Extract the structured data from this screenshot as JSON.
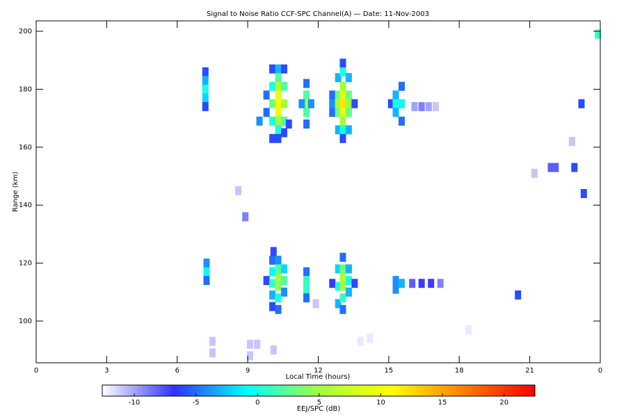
{
  "chart_data": {
    "type": "heatmap",
    "title": "Signal to Noise Ratio CCF-SPC Channel(A) — Date: 11-Nov-2003",
    "x_label": "Local Time (hours)",
    "y_label": "Range (km)",
    "xlim": [
      0,
      24
    ],
    "xticks": [
      0,
      3,
      6,
      9,
      12,
      15,
      18,
      21,
      {
        "value": 24,
        "label": "0"
      }
    ],
    "ylim": [
      85.6,
      203.6
    ],
    "yticks": [
      100,
      120,
      140,
      160,
      180,
      200
    ],
    "colorbar_label": "EEJ/SPC (dB)",
    "clim": [
      -12.6,
      22.5
    ],
    "cticks": [
      -10,
      -5,
      0,
      5,
      10,
      15,
      20
    ],
    "colormap": [
      "#ffffff",
      "#3030ff",
      "#00ffff",
      "#a0ff40",
      "#ffff00",
      "#ff8000",
      "#ff0000"
    ],
    "cells": [
      [
        7.2,
        186,
        -6
      ],
      [
        7.2,
        183,
        -3
      ],
      [
        7.2,
        180,
        0
      ],
      [
        7.2,
        177,
        -2
      ],
      [
        7.2,
        174,
        -6
      ],
      [
        9.8,
        178,
        -5
      ],
      [
        9.8,
        172,
        -5
      ],
      [
        10.05,
        187,
        -6
      ],
      [
        10.05,
        181,
        0
      ],
      [
        10.05,
        175,
        3
      ],
      [
        10.05,
        169,
        0
      ],
      [
        10.05,
        163,
        -6
      ],
      [
        10.3,
        187,
        -3
      ],
      [
        10.3,
        184,
        2
      ],
      [
        10.3,
        181,
        6
      ],
      [
        10.3,
        178,
        9
      ],
      [
        10.3,
        175,
        11
      ],
      [
        10.3,
        172,
        9
      ],
      [
        10.3,
        169,
        5
      ],
      [
        10.3,
        166,
        0
      ],
      [
        10.3,
        163,
        -6
      ],
      [
        10.55,
        187,
        -6
      ],
      [
        10.55,
        181,
        2
      ],
      [
        10.55,
        175,
        5
      ],
      [
        10.55,
        169,
        2
      ],
      [
        10.55,
        165,
        -6
      ],
      [
        11.5,
        182,
        -5
      ],
      [
        11.5,
        178,
        2
      ],
      [
        11.5,
        175,
        5
      ],
      [
        11.5,
        172,
        2
      ],
      [
        11.5,
        168,
        -5
      ],
      [
        11.3,
        175,
        -4
      ],
      [
        11.7,
        175,
        -4
      ],
      [
        12.6,
        178,
        -5
      ],
      [
        12.6,
        175,
        -4
      ],
      [
        12.6,
        172,
        -5
      ],
      [
        12.85,
        184,
        -3
      ],
      [
        12.85,
        178,
        3
      ],
      [
        12.85,
        175,
        5
      ],
      [
        12.85,
        172,
        3
      ],
      [
        12.85,
        166,
        -3
      ],
      [
        13.05,
        189,
        -6
      ],
      [
        13.05,
        186,
        0
      ],
      [
        13.05,
        181,
        5
      ],
      [
        13.05,
        178,
        9
      ],
      [
        13.05,
        175,
        12
      ],
      [
        13.05,
        172,
        9
      ],
      [
        13.05,
        169,
        5
      ],
      [
        13.05,
        166,
        0
      ],
      [
        13.05,
        163,
        -6
      ],
      [
        13.3,
        184,
        -3
      ],
      [
        13.3,
        178,
        3
      ],
      [
        13.3,
        175,
        5
      ],
      [
        13.3,
        172,
        3
      ],
      [
        13.3,
        166,
        -3
      ],
      [
        13.55,
        175,
        -6
      ],
      [
        15.1,
        175,
        -6
      ],
      [
        15.3,
        178,
        -3
      ],
      [
        15.3,
        175,
        0
      ],
      [
        15.3,
        172,
        -3
      ],
      [
        15.55,
        181,
        -5
      ],
      [
        15.55,
        175,
        -1
      ],
      [
        15.55,
        169,
        -5
      ],
      [
        16.1,
        174,
        -10
      ],
      [
        16.4,
        174,
        -9
      ],
      [
        16.7,
        174,
        -10
      ],
      [
        17.0,
        174,
        -11
      ],
      [
        9.5,
        169,
        -4
      ],
      [
        10.75,
        168,
        -6
      ],
      [
        23.9,
        199,
        1
      ],
      [
        23.2,
        175,
        -6
      ],
      [
        22.9,
        153,
        -6
      ],
      [
        22.1,
        153,
        -8
      ],
      [
        21.9,
        153,
        -8
      ],
      [
        23.3,
        144,
        -6
      ],
      [
        22.8,
        162,
        -11
      ],
      [
        21.2,
        151,
        -11
      ],
      [
        8.6,
        145,
        -11
      ],
      [
        8.9,
        136,
        -9
      ],
      [
        7.25,
        120,
        -4
      ],
      [
        7.25,
        117,
        -1
      ],
      [
        7.25,
        114,
        -5
      ],
      [
        9.8,
        114,
        -6
      ],
      [
        10.05,
        121,
        -5
      ],
      [
        10.05,
        117,
        -1
      ],
      [
        10.05,
        113,
        1
      ],
      [
        10.05,
        109,
        -3
      ],
      [
        10.05,
        105,
        -6
      ],
      [
        10.1,
        124,
        -6
      ],
      [
        10.3,
        121,
        -4
      ],
      [
        10.3,
        118,
        2
      ],
      [
        10.3,
        115,
        5
      ],
      [
        10.3,
        112,
        4
      ],
      [
        10.3,
        108,
        0
      ],
      [
        10.3,
        104,
        -5
      ],
      [
        10.55,
        118,
        -2
      ],
      [
        10.55,
        114,
        2
      ],
      [
        10.55,
        110,
        -4
      ],
      [
        11.5,
        117,
        -5
      ],
      [
        11.5,
        114,
        1
      ],
      [
        11.5,
        111,
        1
      ],
      [
        11.5,
        108,
        -5
      ],
      [
        12.6,
        113,
        -7
      ],
      [
        12.85,
        118,
        -2
      ],
      [
        12.85,
        112,
        0
      ],
      [
        12.85,
        106,
        -3
      ],
      [
        13.05,
        122,
        -5
      ],
      [
        13.05,
        118,
        3
      ],
      [
        13.05,
        115,
        6
      ],
      [
        13.05,
        112,
        5
      ],
      [
        13.05,
        108,
        1
      ],
      [
        13.05,
        104,
        -5
      ],
      [
        13.3,
        118,
        -3
      ],
      [
        13.3,
        114,
        0
      ],
      [
        13.3,
        110,
        -3
      ],
      [
        13.55,
        113,
        -6
      ],
      [
        15.3,
        114,
        -4
      ],
      [
        15.3,
        111,
        -4
      ],
      [
        15.55,
        113,
        -3
      ],
      [
        16.0,
        113,
        -8
      ],
      [
        16.4,
        113,
        -7
      ],
      [
        16.8,
        113,
        -7
      ],
      [
        17.2,
        113,
        -9
      ],
      [
        20.5,
        109,
        -6
      ],
      [
        18.4,
        97,
        -12
      ],
      [
        11.9,
        106,
        -11
      ],
      [
        7.5,
        93,
        -11
      ],
      [
        7.5,
        89,
        -11
      ],
      [
        9.1,
        92,
        -11
      ],
      [
        9.1,
        88,
        -11
      ],
      [
        9.4,
        92,
        -11
      ],
      [
        10.1,
        90,
        -11
      ],
      [
        13.8,
        93,
        -12
      ],
      [
        14.2,
        94,
        -12
      ]
    ]
  }
}
